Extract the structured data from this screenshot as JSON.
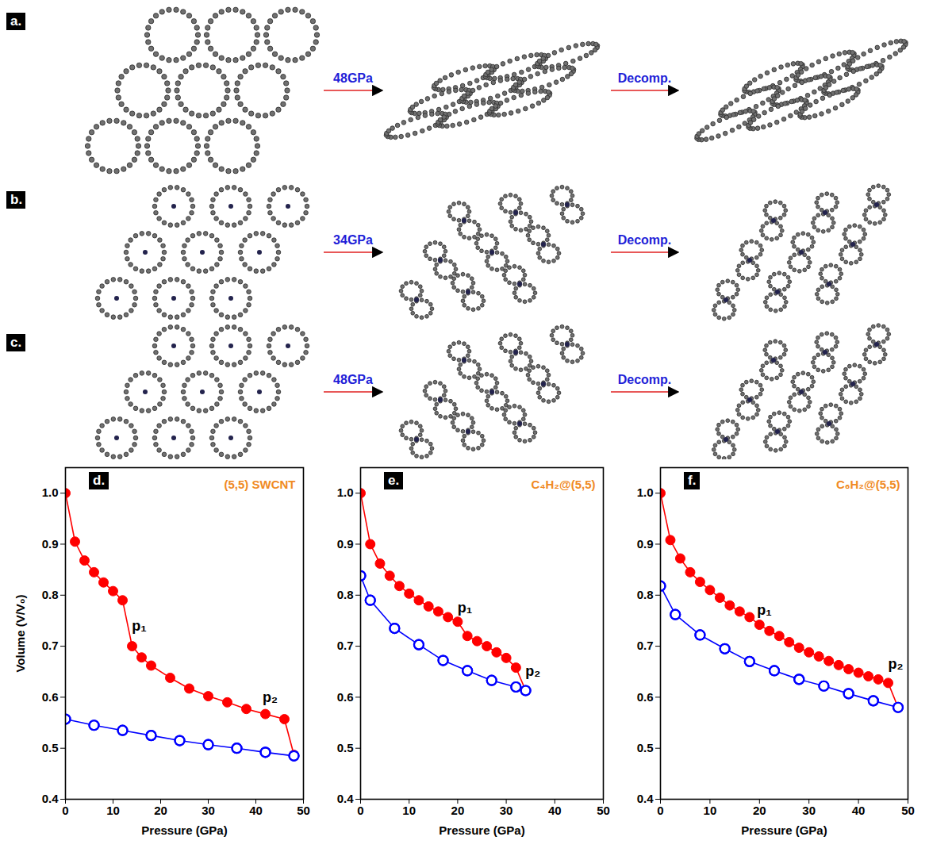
{
  "figure": {
    "structures": [
      {
        "letter": "a.",
        "transition_label": "48GPa",
        "decompression_label": "Decomp."
      },
      {
        "letter": "b.",
        "transition_label": "34GPa",
        "decompression_label": "Decomp."
      },
      {
        "letter": "c.",
        "transition_label": "48GPa",
        "decompression_label": "Decomp."
      }
    ]
  },
  "chart_data": [
    {
      "letter": "d.",
      "type": "line",
      "title": "(5,5) SWCNT",
      "x_label": "Pressure (GPa)",
      "y_label": "Volume (V/V₀)",
      "xlim": [
        0,
        50
      ],
      "xticks": [
        0,
        10,
        20,
        30,
        40,
        50
      ],
      "ylim": [
        0.4,
        1.05
      ],
      "yticks": [
        0.4,
        0.5,
        0.6,
        0.7,
        0.8,
        0.9,
        {
          "value": 1,
          "label": "1.0"
        }
      ],
      "series": [
        {
          "color": "#ff0000",
          "marker": "filled_circle",
          "x": [
            0,
            2,
            4,
            6,
            8,
            10,
            12,
            14,
            16,
            18,
            22,
            26,
            30,
            34,
            38,
            42,
            46,
            48
          ],
          "values": [
            1.0,
            0.905,
            0.868,
            0.845,
            0.825,
            0.808,
            0.79,
            0.7,
            0.678,
            0.662,
            0.638,
            0.617,
            0.602,
            0.59,
            0.577,
            0.567,
            0.557,
            0.487
          ]
        },
        {
          "color": "#0000ff",
          "marker": "open_circle",
          "x": [
            0,
            6,
            12,
            18,
            24,
            30,
            36,
            42,
            48
          ],
          "values": [
            0.557,
            0.545,
            0.535,
            0.525,
            0.515,
            0.507,
            0.5,
            0.492,
            0.485
          ]
        }
      ],
      "annotations": [
        {
          "text": "p₁",
          "x": 15.5,
          "y": 0.74
        },
        {
          "text": "p₂",
          "x": 43,
          "y": 0.6
        }
      ]
    },
    {
      "letter": "e.",
      "type": "line",
      "title": "C₄H₂@(5,5)",
      "x_label": "Pressure (GPa)",
      "xlim": [
        0,
        50
      ],
      "xticks": [
        0,
        10,
        20,
        30,
        40,
        50
      ],
      "ylim": [
        0.4,
        1.05
      ],
      "yticks": [
        0.4,
        0.5,
        0.6,
        0.7,
        0.8,
        0.9,
        {
          "value": 1,
          "label": "1.0"
        }
      ],
      "series": [
        {
          "color": "#ff0000",
          "marker": "filled_circle",
          "x": [
            0,
            2,
            4,
            6,
            8,
            10,
            12,
            14,
            16,
            18,
            20,
            22,
            24,
            26,
            28,
            30,
            32,
            34
          ],
          "values": [
            1.0,
            0.9,
            0.862,
            0.838,
            0.818,
            0.803,
            0.79,
            0.778,
            0.768,
            0.757,
            0.748,
            0.72,
            0.71,
            0.7,
            0.688,
            0.677,
            0.658,
            0.613
          ]
        },
        {
          "color": "#0000ff",
          "marker": "open_circle",
          "x": [
            0,
            2,
            7,
            12,
            17,
            22,
            27,
            32,
            34
          ],
          "values": [
            0.838,
            0.79,
            0.735,
            0.703,
            0.672,
            0.652,
            0.633,
            0.62,
            0.613
          ]
        }
      ],
      "annotations": [
        {
          "text": "p₁",
          "x": 21.5,
          "y": 0.775
        },
        {
          "text": "p₂",
          "x": 35.5,
          "y": 0.65
        }
      ]
    },
    {
      "letter": "f.",
      "type": "line",
      "title": "C₆H₂@(5,5)",
      "x_label": "Pressure (GPa)",
      "xlim": [
        0,
        50
      ],
      "xticks": [
        0,
        10,
        20,
        30,
        40,
        50
      ],
      "ylim": [
        0.4,
        1.05
      ],
      "yticks": [
        0.4,
        0.5,
        0.6,
        0.7,
        0.8,
        0.9,
        {
          "value": 1,
          "label": "1.0"
        }
      ],
      "series": [
        {
          "color": "#ff0000",
          "marker": "filled_circle",
          "x": [
            0,
            2,
            4,
            6,
            8,
            10,
            12,
            14,
            16,
            18,
            20,
            22,
            24,
            26,
            28,
            30,
            32,
            34,
            36,
            38,
            40,
            42,
            44,
            46,
            48
          ],
          "values": [
            1.0,
            0.908,
            0.872,
            0.845,
            0.826,
            0.81,
            0.795,
            0.78,
            0.768,
            0.757,
            0.742,
            0.73,
            0.72,
            0.708,
            0.697,
            0.688,
            0.68,
            0.671,
            0.663,
            0.655,
            0.648,
            0.641,
            0.635,
            0.628,
            0.58
          ]
        },
        {
          "color": "#0000ff",
          "marker": "open_circle",
          "x": [
            0,
            3,
            8,
            13,
            18,
            23,
            28,
            33,
            38,
            43,
            48
          ],
          "values": [
            0.818,
            0.762,
            0.722,
            0.695,
            0.67,
            0.652,
            0.635,
            0.622,
            0.607,
            0.593,
            0.58
          ]
        }
      ],
      "annotations": [
        {
          "text": "p₁",
          "x": 21,
          "y": 0.77
        },
        {
          "text": "p₂",
          "x": 47.5,
          "y": 0.665
        }
      ]
    }
  ]
}
